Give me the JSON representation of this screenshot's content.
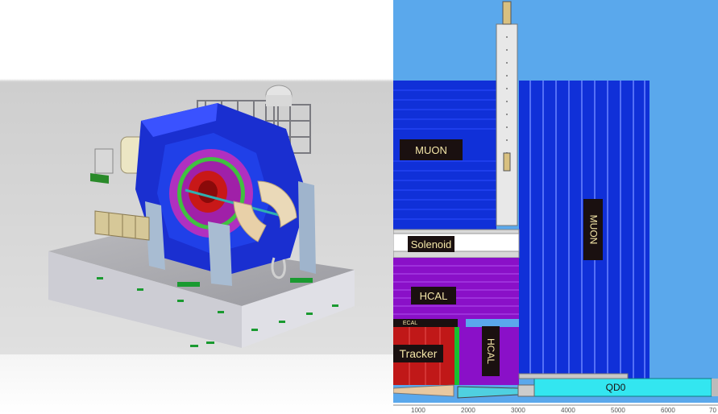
{
  "left_render": {
    "kind": "3d-cutaway-detector-render"
  },
  "right_section": {
    "labels": {
      "muon_left": "MUON",
      "muon_right": "MUON",
      "solenoid": "Solenoid",
      "hcal_barrel": "HCAL",
      "hcal_endcap": "HCAL",
      "ecal": "ECAL",
      "tracker": "Tracker",
      "qd0": "QD0"
    },
    "axis_ticks": [
      "1000",
      "2000",
      "3000",
      "4000",
      "5000",
      "6000",
      "70"
    ],
    "colors": {
      "sky": "#5aa8ec",
      "muon_blue": "#1030d8",
      "hcal_purple": "#8a10c8",
      "tracker_red": "#c01818",
      "qd0_cyan": "#33e6f0",
      "solenoid_gray": "#d8d8d8"
    }
  }
}
